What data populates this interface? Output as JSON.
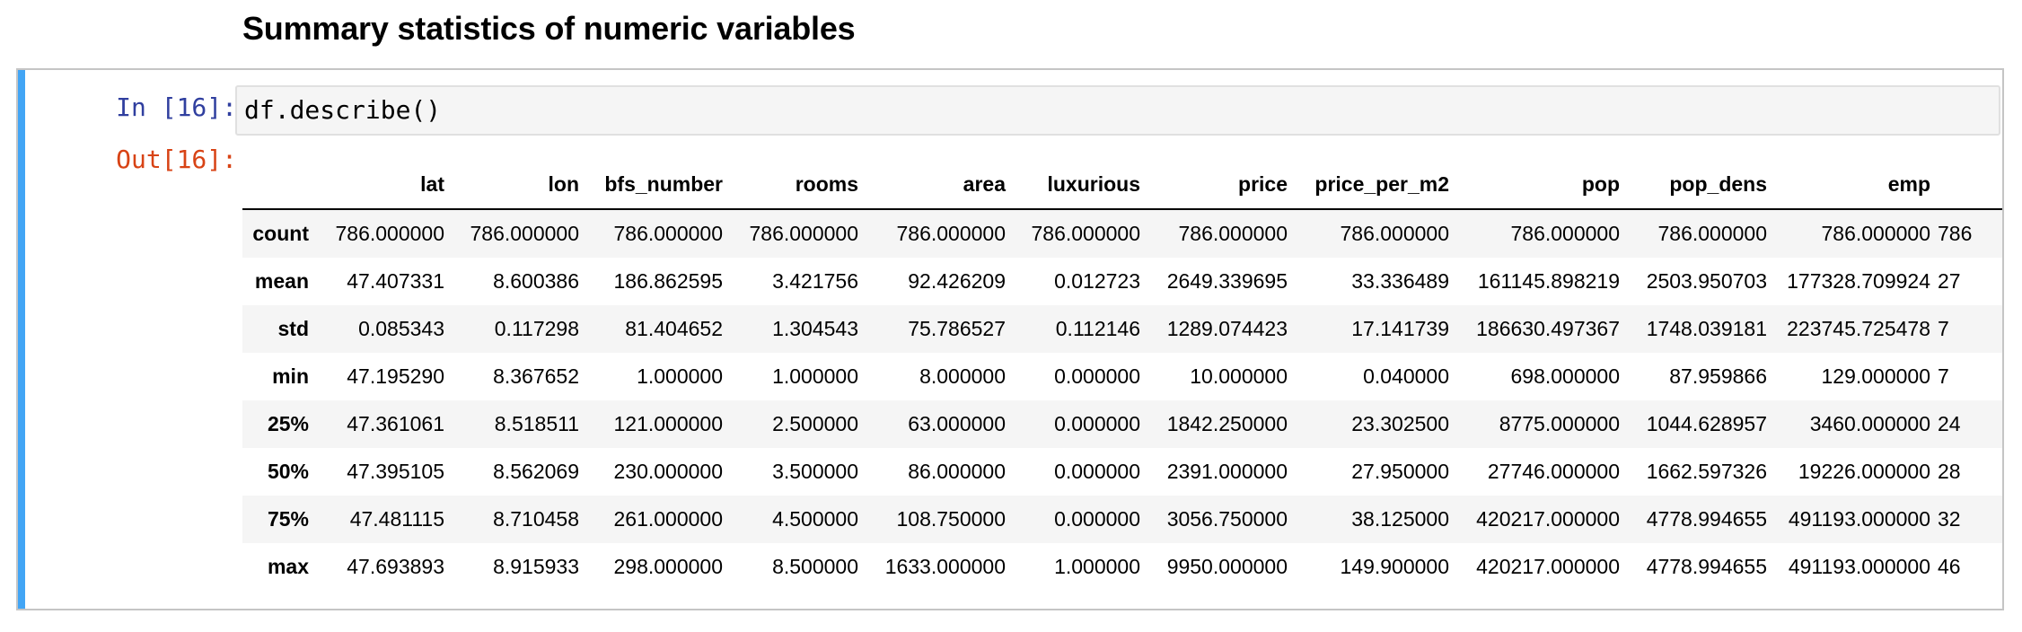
{
  "heading": "Summary statistics of numeric variables",
  "cell": {
    "in_prompt": "In [16]:",
    "out_prompt": "Out[16]:",
    "code": "df.describe()"
  },
  "table": {
    "columns": [
      "lat",
      "lon",
      "bfs_number",
      "rooms",
      "area",
      "luxurious",
      "price",
      "price_per_m2",
      "pop",
      "pop_dens",
      "emp",
      ""
    ],
    "rows": [
      {
        "label": "count",
        "values": [
          "786.000000",
          "786.000000",
          "786.000000",
          "786.000000",
          "786.000000",
          "786.000000",
          "786.000000",
          "786.000000",
          "786.000000",
          "786.000000",
          "786.000000",
          "786"
        ]
      },
      {
        "label": "mean",
        "values": [
          "47.407331",
          "8.600386",
          "186.862595",
          "3.421756",
          "92.426209",
          "0.012723",
          "2649.339695",
          "33.336489",
          "161145.898219",
          "2503.950703",
          "177328.709924",
          "27"
        ]
      },
      {
        "label": "std",
        "values": [
          "0.085343",
          "0.117298",
          "81.404652",
          "1.304543",
          "75.786527",
          "0.112146",
          "1289.074423",
          "17.141739",
          "186630.497367",
          "1748.039181",
          "223745.725478",
          "7"
        ]
      },
      {
        "label": "min",
        "values": [
          "47.195290",
          "8.367652",
          "1.000000",
          "1.000000",
          "8.000000",
          "0.000000",
          "10.000000",
          "0.040000",
          "698.000000",
          "87.959866",
          "129.000000",
          "7"
        ]
      },
      {
        "label": "25%",
        "values": [
          "47.361061",
          "8.518511",
          "121.000000",
          "2.500000",
          "63.000000",
          "0.000000",
          "1842.250000",
          "23.302500",
          "8775.000000",
          "1044.628957",
          "3460.000000",
          "24"
        ]
      },
      {
        "label": "50%",
        "values": [
          "47.395105",
          "8.562069",
          "230.000000",
          "3.500000",
          "86.000000",
          "0.000000",
          "2391.000000",
          "27.950000",
          "27746.000000",
          "1662.597326",
          "19226.000000",
          "28"
        ]
      },
      {
        "label": "75%",
        "values": [
          "47.481115",
          "8.710458",
          "261.000000",
          "4.500000",
          "108.750000",
          "0.000000",
          "3056.750000",
          "38.125000",
          "420217.000000",
          "4778.994655",
          "491193.000000",
          "32"
        ]
      },
      {
        "label": "max",
        "values": [
          "47.693893",
          "8.915933",
          "298.000000",
          "8.500000",
          "1633.000000",
          "1.000000",
          "9950.000000",
          "149.900000",
          "420217.000000",
          "4778.994655",
          "491193.000000",
          "46"
        ]
      }
    ]
  },
  "colors": {
    "cell_bar": "#42a5f5",
    "in_prompt": "#303f9f",
    "out_prompt": "#d84315"
  }
}
